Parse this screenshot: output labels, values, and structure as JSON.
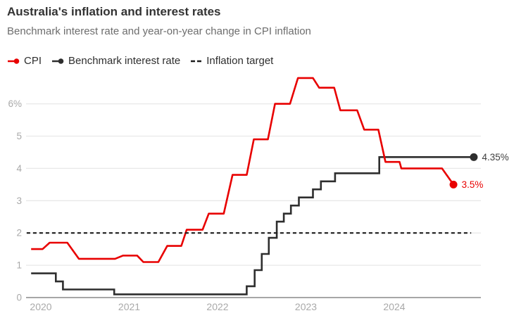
{
  "header": {
    "title": "Australia's inflation and interest rates",
    "subtitle": "Benchmark interest rate and year-on-year change in CPI inflation"
  },
  "legend": {
    "items": [
      {
        "label": "CPI",
        "color": "#e80000",
        "marker": "line-dot"
      },
      {
        "label": "Benchmark interest rate",
        "color": "#2e2e2e",
        "marker": "line-dot"
      },
      {
        "label": "Inflation target",
        "color": "#1c1c1c",
        "marker": "dashed"
      }
    ]
  },
  "chart_data": {
    "type": "line",
    "title": "Australia's inflation and interest rates",
    "subtitle": "Benchmark interest rate and year-on-year change in CPI inflation",
    "x_unit": "year",
    "y_unit": "%",
    "xlim": [
      2019.84,
      2025.35
    ],
    "ylim": [
      0,
      7
    ],
    "grid": "horizontal",
    "legend_position": "top",
    "x_ticks": [
      {
        "value": 2020,
        "label": "2020"
      },
      {
        "value": 2021,
        "label": "2021"
      },
      {
        "value": 2022,
        "label": "2022"
      },
      {
        "value": 2023,
        "label": "2023"
      },
      {
        "value": 2024,
        "label": "2024"
      }
    ],
    "y_ticks": [
      {
        "value": 0,
        "label": "0"
      },
      {
        "value": 1,
        "label": "1"
      },
      {
        "value": 2,
        "label": "2"
      },
      {
        "value": 3,
        "label": "3"
      },
      {
        "value": 4,
        "label": "4"
      },
      {
        "value": 5,
        "label": "5"
      },
      {
        "value": 6,
        "label": "6%"
      }
    ],
    "series": [
      {
        "name": "Benchmark interest rate",
        "color": "#2e2e2e",
        "label_color": "#3f3f3f",
        "shape": "step",
        "end_dot": [
          2024.9,
          4.35
        ],
        "end_label": "4.35%",
        "points": [
          [
            2019.89,
            0.75
          ],
          [
            2020.17,
            0.75
          ],
          [
            2020.17,
            0.5
          ],
          [
            2020.25,
            0.5
          ],
          [
            2020.25,
            0.25
          ],
          [
            2020.83,
            0.25
          ],
          [
            2020.83,
            0.1
          ],
          [
            2022.33,
            0.1
          ],
          [
            2022.33,
            0.35
          ],
          [
            2022.42,
            0.35
          ],
          [
            2022.42,
            0.85
          ],
          [
            2022.5,
            0.85
          ],
          [
            2022.5,
            1.35
          ],
          [
            2022.58,
            1.35
          ],
          [
            2022.58,
            1.85
          ],
          [
            2022.67,
            1.85
          ],
          [
            2022.67,
            2.35
          ],
          [
            2022.75,
            2.35
          ],
          [
            2022.75,
            2.6
          ],
          [
            2022.83,
            2.6
          ],
          [
            2022.83,
            2.85
          ],
          [
            2022.92,
            2.85
          ],
          [
            2022.92,
            3.1
          ],
          [
            2023.08,
            3.1
          ],
          [
            2023.08,
            3.35
          ],
          [
            2023.17,
            3.35
          ],
          [
            2023.17,
            3.6
          ],
          [
            2023.33,
            3.6
          ],
          [
            2023.33,
            3.85
          ],
          [
            2023.83,
            3.85
          ],
          [
            2023.83,
            4.35
          ],
          [
            2024.9,
            4.35
          ]
        ]
      },
      {
        "name": "CPI",
        "color": "#e80000",
        "label_color": "#e80000",
        "shape": "line",
        "end_dot": [
          2024.67,
          3.5
        ],
        "end_label": "3.5%",
        "points": [
          [
            2019.89,
            1.5
          ],
          [
            2020.02,
            1.5
          ],
          [
            2020.1,
            1.7
          ],
          [
            2020.3,
            1.7
          ],
          [
            2020.43,
            1.2
          ],
          [
            2020.84,
            1.2
          ],
          [
            2020.93,
            1.3
          ],
          [
            2021.09,
            1.3
          ],
          [
            2021.16,
            1.1
          ],
          [
            2021.33,
            1.1
          ],
          [
            2021.43,
            1.6
          ],
          [
            2021.59,
            1.6
          ],
          [
            2021.65,
            2.1
          ],
          [
            2021.83,
            2.1
          ],
          [
            2021.9,
            2.6
          ],
          [
            2022.07,
            2.6
          ],
          [
            2022.17,
            3.8
          ],
          [
            2022.33,
            3.8
          ],
          [
            2022.41,
            4.9
          ],
          [
            2022.57,
            4.9
          ],
          [
            2022.65,
            6.0
          ],
          [
            2022.82,
            6.0
          ],
          [
            2022.91,
            6.8
          ],
          [
            2023.08,
            6.8
          ],
          [
            2023.15,
            6.5
          ],
          [
            2023.32,
            6.5
          ],
          [
            2023.39,
            5.8
          ],
          [
            2023.58,
            5.8
          ],
          [
            2023.66,
            5.2
          ],
          [
            2023.82,
            5.2
          ],
          [
            2023.9,
            4.2
          ],
          [
            2024.06,
            4.2
          ],
          [
            2024.08,
            4.0
          ],
          [
            2024.54,
            4.0
          ],
          [
            2024.67,
            3.5
          ]
        ]
      },
      {
        "name": "Inflation target",
        "color": "#1c1c1c",
        "style": "dashed",
        "value": 2.0,
        "x_start": 2019.84,
        "x_end": 2024.87
      }
    ]
  },
  "annotations": {
    "benchmark_end": "4.35%",
    "cpi_end": "3.5%"
  }
}
